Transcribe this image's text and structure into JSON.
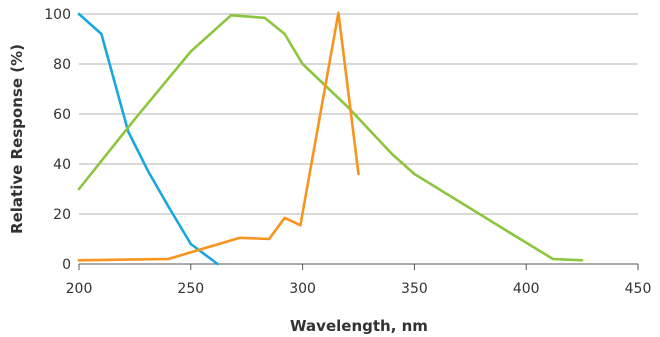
{
  "chart_data": {
    "type": "line",
    "xlabel": "Wavelength, nm",
    "ylabel": "Relative Response (%)",
    "xlim": [
      200,
      450
    ],
    "ylim": [
      0,
      100
    ],
    "x_ticks": [
      200,
      250,
      300,
      350,
      400,
      450
    ],
    "y_ticks": [
      0,
      20,
      40,
      60,
      80,
      100
    ],
    "grid": "horizontal",
    "legend": "none",
    "series": [
      {
        "color": "#1aa7e0",
        "points": [
          [
            200,
            100
          ],
          [
            210,
            92
          ],
          [
            222,
            53
          ],
          [
            231,
            37
          ],
          [
            240,
            23
          ],
          [
            250,
            8
          ],
          [
            262,
            0
          ]
        ]
      },
      {
        "color": "#8cc63f",
        "points": [
          [
            200,
            30
          ],
          [
            225,
            58
          ],
          [
            250,
            85
          ],
          [
            268,
            99.5
          ],
          [
            283,
            98.5
          ],
          [
            292,
            92
          ],
          [
            300,
            80
          ],
          [
            320,
            63
          ],
          [
            340,
            44
          ],
          [
            350,
            36
          ],
          [
            370,
            25
          ],
          [
            390,
            14
          ],
          [
            412,
            2
          ],
          [
            425,
            1.5
          ]
        ]
      },
      {
        "color": "#f7941d",
        "points": [
          [
            200,
            1.5
          ],
          [
            240,
            2
          ],
          [
            255,
            6
          ],
          [
            272,
            10.5
          ],
          [
            285,
            10
          ],
          [
            292,
            18.5
          ],
          [
            299,
            15.5
          ],
          [
            316,
            100.5
          ],
          [
            325,
            36
          ]
        ]
      }
    ]
  }
}
